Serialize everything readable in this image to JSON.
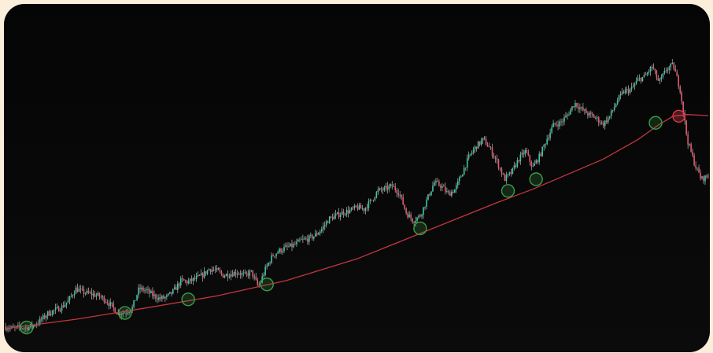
{
  "colors": {
    "background": "#070707",
    "frame": "#fbeedb",
    "up_candle": "#3fc6a6",
    "down_candle": "#e45a6c",
    "wick": "#d8d8d8",
    "moving_average": "#c2363f",
    "touch_support": "#3d9a47",
    "touch_breakdown": "#d23a46"
  },
  "chart_data": {
    "type": "candlestick",
    "title": "",
    "xlabel": "",
    "ylabel": "",
    "grid": false,
    "legend": "none",
    "ylim": [
      0,
      100
    ],
    "xlim": [
      0,
      100
    ],
    "price_path": [
      [
        0,
        5.5
      ],
      [
        1,
        5.0
      ],
      [
        2,
        5.3
      ],
      [
        3,
        5.2
      ],
      [
        4,
        6.0
      ],
      [
        5,
        7.5
      ],
      [
        6,
        9.5
      ],
      [
        7,
        10.5
      ],
      [
        8,
        11.5
      ],
      [
        9,
        13.5
      ],
      [
        10,
        17.0
      ],
      [
        11,
        16.0
      ],
      [
        12,
        15.5
      ],
      [
        13,
        15.0
      ],
      [
        14,
        14.0
      ],
      [
        15,
        12.0
      ],
      [
        16,
        9.5
      ],
      [
        17,
        10.0
      ],
      [
        18,
        11.0
      ],
      [
        19,
        17.0
      ],
      [
        20,
        16.5
      ],
      [
        21,
        15.0
      ],
      [
        22,
        14.0
      ],
      [
        23,
        14.5
      ],
      [
        24,
        16.5
      ],
      [
        25,
        19.5
      ],
      [
        26,
        19.0
      ],
      [
        27,
        20.0
      ],
      [
        28,
        21.0
      ],
      [
        29,
        23.0
      ],
      [
        30,
        22.5
      ],
      [
        31,
        21.0
      ],
      [
        32,
        21.5
      ],
      [
        33,
        22.0
      ],
      [
        34,
        21.0
      ],
      [
        35,
        22.0
      ],
      [
        36,
        17.5
      ],
      [
        37,
        23.0
      ],
      [
        38,
        27.0
      ],
      [
        39,
        28.5
      ],
      [
        40,
        29.5
      ],
      [
        41,
        30.0
      ],
      [
        42,
        31.5
      ],
      [
        43,
        32.0
      ],
      [
        44,
        33.0
      ],
      [
        45,
        35.0
      ],
      [
        46,
        38.0
      ],
      [
        47,
        39.0
      ],
      [
        48,
        40.0
      ],
      [
        49,
        40.5
      ],
      [
        50,
        41.5
      ],
      [
        51,
        41.0
      ],
      [
        52,
        43.5
      ],
      [
        53,
        46.5
      ],
      [
        54,
        47.0
      ],
      [
        55,
        48.0
      ],
      [
        56,
        46.0
      ],
      [
        57,
        40.0
      ],
      [
        58,
        37.5
      ],
      [
        59,
        39.0
      ],
      [
        60,
        44.0
      ],
      [
        61,
        49.0
      ],
      [
        62,
        48.0
      ],
      [
        63,
        45.5
      ],
      [
        64,
        47.0
      ],
      [
        65,
        52.0
      ],
      [
        66,
        57.0
      ],
      [
        67,
        60.0
      ],
      [
        68,
        62.0
      ],
      [
        69,
        59.0
      ],
      [
        70,
        55.0
      ],
      [
        71,
        50.0
      ],
      [
        72,
        52.0
      ],
      [
        73,
        56.0
      ],
      [
        74,
        58.5
      ],
      [
        75,
        53.5
      ],
      [
        76,
        57.0
      ],
      [
        77,
        62.0
      ],
      [
        78,
        66.5
      ],
      [
        79,
        67.0
      ],
      [
        80,
        69.5
      ],
      [
        81,
        73.0
      ],
      [
        82,
        71.0
      ],
      [
        83,
        69.5
      ],
      [
        84,
        68.5
      ],
      [
        85,
        66.5
      ],
      [
        86,
        69.0
      ],
      [
        87,
        73.5
      ],
      [
        88,
        76.5
      ],
      [
        89,
        77.0
      ],
      [
        90,
        80.0
      ],
      [
        91,
        81.0
      ],
      [
        92,
        84.0
      ],
      [
        93,
        79.0
      ],
      [
        94,
        83.0
      ],
      [
        95,
        84.5
      ],
      [
        96,
        77.0
      ],
      [
        97,
        62.0
      ],
      [
        98,
        55.0
      ],
      [
        99,
        50.0
      ],
      [
        100,
        51.0
      ]
    ],
    "moving_average": [
      [
        0,
        5.0
      ],
      [
        10,
        7.8
      ],
      [
        20,
        11.2
      ],
      [
        30,
        14.8
      ],
      [
        40,
        19.5
      ],
      [
        50,
        26.0
      ],
      [
        60,
        34.5
      ],
      [
        70,
        43.0
      ],
      [
        75,
        47.0
      ],
      [
        80,
        51.5
      ],
      [
        85,
        56.0
      ],
      [
        90,
        62.0
      ],
      [
        93,
        66.5
      ],
      [
        95,
        69.0
      ],
      [
        97,
        69.5
      ],
      [
        100,
        69.2
      ]
    ],
    "touch_points": [
      {
        "x": 3,
        "y": 5.3,
        "type": "support"
      },
      {
        "x": 17,
        "y": 9.7,
        "type": "support"
      },
      {
        "x": 26,
        "y": 13.8,
        "type": "support"
      },
      {
        "x": 37.2,
        "y": 18.3,
        "type": "support"
      },
      {
        "x": 59,
        "y": 35.2,
        "type": "support"
      },
      {
        "x": 71.5,
        "y": 46.5,
        "type": "support"
      },
      {
        "x": 75.5,
        "y": 50.0,
        "type": "support"
      },
      {
        "x": 92.5,
        "y": 67.0,
        "type": "support"
      },
      {
        "x": 95.8,
        "y": 69.0,
        "type": "breakdown"
      }
    ]
  }
}
